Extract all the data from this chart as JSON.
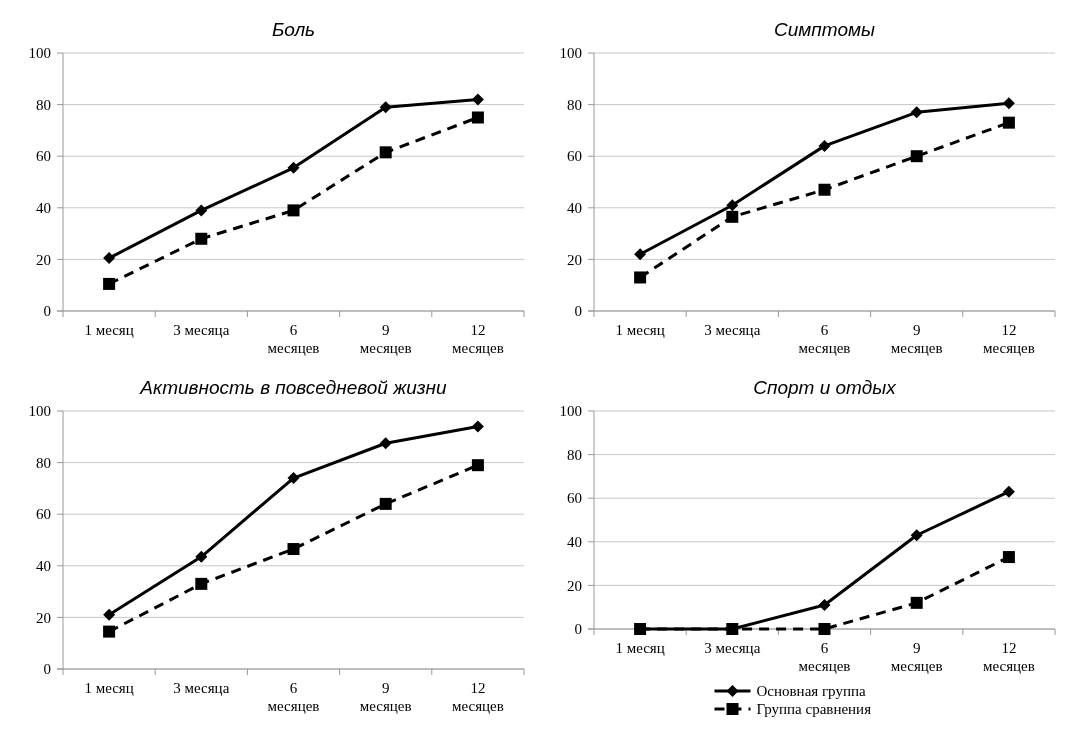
{
  "chart_data": [
    {
      "type": "line",
      "title": "Боль",
      "categories": [
        "1 месяц",
        "3 месяца",
        "6 месяцев",
        "9 месяцев",
        "12 месяцев"
      ],
      "ylim": [
        0,
        100
      ],
      "yticks": [
        0,
        20,
        40,
        60,
        80,
        100
      ],
      "grid": "y",
      "legend": false,
      "series": [
        {
          "color": "#000000",
          "marker": "diamond",
          "line_style": "solid",
          "values": [
            20.5,
            39,
            55.5,
            79,
            82
          ]
        },
        {
          "color": "#000000",
          "marker": "square",
          "line_style": "dashed",
          "values": [
            10.5,
            28,
            39,
            61.5,
            75
          ]
        }
      ]
    },
    {
      "type": "line",
      "title": "Симптомы",
      "categories": [
        "1 месяц",
        "3 месяца",
        "6 месяцев",
        "9 месяцев",
        "12 месяцев"
      ],
      "ylim": [
        0,
        100
      ],
      "yticks": [
        0,
        20,
        40,
        60,
        80,
        100
      ],
      "grid": "y",
      "legend": false,
      "series": [
        {
          "color": "#000000",
          "marker": "diamond",
          "line_style": "solid",
          "values": [
            22,
            41,
            64,
            77,
            80.5
          ]
        },
        {
          "color": "#000000",
          "marker": "square",
          "line_style": "dashed",
          "values": [
            13,
            36.5,
            47,
            60,
            73
          ]
        }
      ]
    },
    {
      "type": "line",
      "title": "Активность в повседневой жизни",
      "categories": [
        "1 месяц",
        "3 месяца",
        "6 месяцев",
        "9 месяцев",
        "12 месяцев"
      ],
      "ylim": [
        0,
        100
      ],
      "yticks": [
        0,
        20,
        40,
        60,
        80,
        100
      ],
      "grid": "y",
      "legend": false,
      "series": [
        {
          "color": "#000000",
          "marker": "diamond",
          "line_style": "solid",
          "values": [
            21,
            43.5,
            74,
            87.5,
            94
          ]
        },
        {
          "color": "#000000",
          "marker": "square",
          "line_style": "dashed",
          "values": [
            14.5,
            33,
            46.5,
            64,
            79
          ]
        }
      ]
    },
    {
      "type": "line",
      "title": "Спорт и отдых",
      "categories": [
        "1 месяц",
        "3 месяца",
        "6 месяцев",
        "9 месяцев",
        "12 месяцев"
      ],
      "ylim": [
        0,
        100
      ],
      "yticks": [
        0,
        20,
        40,
        60,
        80,
        100
      ],
      "grid": "y",
      "legend": "bottom",
      "series": [
        {
          "name": "Основная группа",
          "color": "#000000",
          "marker": "diamond",
          "line_style": "solid",
          "values": [
            0,
            0,
            11,
            43,
            63
          ]
        },
        {
          "name": "Группа сравнения",
          "color": "#000000",
          "marker": "square",
          "line_style": "dashed",
          "values": [
            0,
            0,
            0,
            12,
            33
          ]
        }
      ]
    }
  ]
}
